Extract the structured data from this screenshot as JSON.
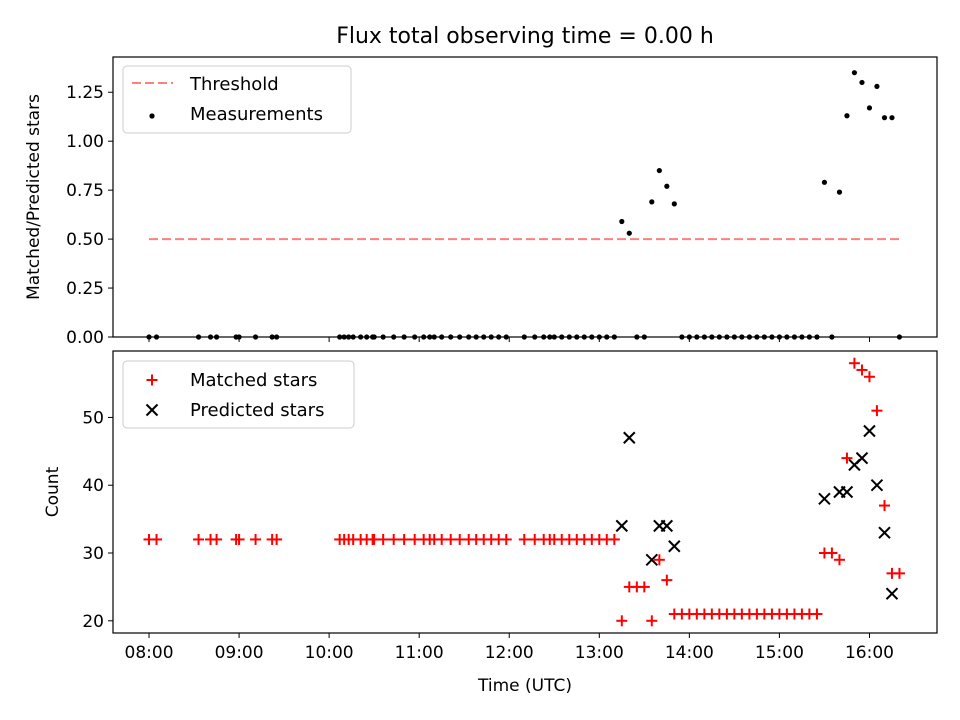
{
  "chart_data": [
    {
      "type": "scatter",
      "title": "Flux total observing time = 0.00 h",
      "xlabel": "",
      "ylabel": "Matched/Predicted stars",
      "xlim": [
        7.6,
        16.75
      ],
      "ylim": [
        0,
        1.43
      ],
      "yticks": [
        0.0,
        0.25,
        0.5,
        0.75,
        1.0,
        1.25
      ],
      "ytick_labels": [
        "0.00",
        "0.25",
        "0.50",
        "0.75",
        "1.00",
        "1.25"
      ],
      "legend_position": "top-left",
      "threshold": {
        "name": "Threshold",
        "y": 0.5,
        "x_range": [
          8.0,
          16.35
        ],
        "color": "#ff7f7f"
      },
      "series": [
        {
          "name": "Measurements",
          "color": "#000000",
          "x": [
            8.0,
            8.083,
            8.55,
            8.683,
            8.75,
            8.967,
            9.0,
            9.183,
            9.367,
            9.417,
            10.117,
            10.167,
            10.217,
            10.267,
            10.35,
            10.417,
            10.483,
            10.5,
            10.6,
            10.717,
            10.833,
            10.95,
            11.05,
            11.117,
            11.167,
            11.25,
            11.35,
            11.45,
            11.55,
            11.633,
            11.717,
            11.8,
            11.883,
            11.967,
            12.167,
            12.283,
            12.383,
            12.45,
            12.5,
            12.583,
            12.667,
            12.75,
            12.833,
            12.917,
            13.0,
            13.083,
            13.167,
            13.25,
            13.333,
            13.417,
            13.5,
            13.583,
            13.667,
            13.75,
            13.833,
            13.917,
            14.0,
            14.083,
            14.167,
            14.25,
            14.333,
            14.417,
            14.5,
            14.583,
            14.667,
            14.75,
            14.833,
            14.917,
            15.0,
            15.083,
            15.167,
            15.25,
            15.333,
            15.417,
            15.5,
            15.583,
            15.667,
            15.75,
            15.833,
            15.917,
            16.0,
            16.083,
            16.167,
            16.25,
            16.333
          ],
          "y": [
            0,
            0,
            0,
            0,
            0,
            0,
            0,
            0,
            0,
            0,
            0,
            0,
            0,
            0,
            0,
            0,
            0,
            0,
            0,
            0,
            0,
            0,
            0,
            0,
            0,
            0,
            0,
            0,
            0,
            0,
            0,
            0,
            0,
            0,
            0,
            0,
            0,
            0,
            0,
            0,
            0,
            0,
            0,
            0,
            0,
            0,
            0,
            0.59,
            0.53,
            0,
            0,
            0.69,
            0.85,
            0.77,
            0.68,
            0,
            0,
            0,
            0,
            0,
            0,
            0,
            0,
            0,
            0,
            0,
            0,
            0,
            0,
            0,
            0,
            0,
            0,
            0,
            0.79,
            0,
            0.74,
            1.13,
            1.35,
            1.3,
            1.17,
            1.28,
            1.12,
            1.12,
            0
          ]
        }
      ]
    },
    {
      "type": "scatter",
      "title": "",
      "xlabel": "Time (UTC)",
      "ylabel": "Count",
      "xlim": [
        7.6,
        16.75
      ],
      "ylim": [
        18.2,
        59.8
      ],
      "yticks": [
        20,
        30,
        40,
        50
      ],
      "ytick_labels": [
        "20",
        "30",
        "40",
        "50"
      ],
      "xticks": [
        8,
        9,
        10,
        11,
        12,
        13,
        14,
        15,
        16
      ],
      "xtick_labels": [
        "08:00",
        "09:00",
        "10:00",
        "11:00",
        "12:00",
        "13:00",
        "14:00",
        "15:00",
        "16:00"
      ],
      "legend_position": "top-left",
      "series": [
        {
          "name": "Matched stars",
          "color": "#ff0000",
          "marker": "+",
          "x": [
            8.0,
            8.083,
            8.55,
            8.683,
            8.75,
            8.967,
            9.0,
            9.183,
            9.367,
            9.417,
            10.117,
            10.167,
            10.217,
            10.267,
            10.35,
            10.417,
            10.483,
            10.5,
            10.6,
            10.717,
            10.833,
            10.95,
            11.05,
            11.117,
            11.167,
            11.25,
            11.35,
            11.45,
            11.55,
            11.633,
            11.717,
            11.8,
            11.883,
            11.967,
            12.167,
            12.283,
            12.383,
            12.45,
            12.5,
            12.583,
            12.667,
            12.75,
            12.833,
            12.917,
            13.0,
            13.083,
            13.167,
            13.25,
            13.333,
            13.417,
            13.5,
            13.583,
            13.667,
            13.75,
            13.833,
            13.917,
            14.0,
            14.083,
            14.167,
            14.25,
            14.333,
            14.417,
            14.5,
            14.583,
            14.667,
            14.75,
            14.833,
            14.917,
            15.0,
            15.083,
            15.167,
            15.25,
            15.333,
            15.417,
            15.5,
            15.583,
            15.667,
            15.75,
            15.833,
            15.917,
            16.0,
            16.083,
            16.167,
            16.25,
            16.333
          ],
          "y": [
            32,
            32,
            32,
            32,
            32,
            32,
            32,
            32,
            32,
            32,
            32,
            32,
            32,
            32,
            32,
            32,
            32,
            32,
            32,
            32,
            32,
            32,
            32,
            32,
            32,
            32,
            32,
            32,
            32,
            32,
            32,
            32,
            32,
            32,
            32,
            32,
            32,
            32,
            32,
            32,
            32,
            32,
            32,
            32,
            32,
            32,
            32,
            20,
            25,
            25,
            25,
            20,
            29,
            26,
            21,
            21,
            21,
            21,
            21,
            21,
            21,
            21,
            21,
            21,
            21,
            21,
            21,
            21,
            21,
            21,
            21,
            21,
            21,
            21,
            30,
            30,
            29,
            44,
            58,
            57,
            56,
            51,
            37,
            27,
            27
          ]
        },
        {
          "name": "Predicted stars",
          "color": "#000000",
          "marker": "x",
          "x": [
            13.25,
            13.333,
            13.583,
            13.667,
            13.75,
            13.833,
            15.5,
            15.667,
            15.75,
            15.833,
            15.917,
            16.0,
            16.083,
            16.167,
            16.25
          ],
          "y": [
            34,
            47,
            29,
            34,
            34,
            31,
            38,
            39,
            39,
            43,
            44,
            48,
            40,
            33,
            24
          ]
        }
      ]
    }
  ]
}
